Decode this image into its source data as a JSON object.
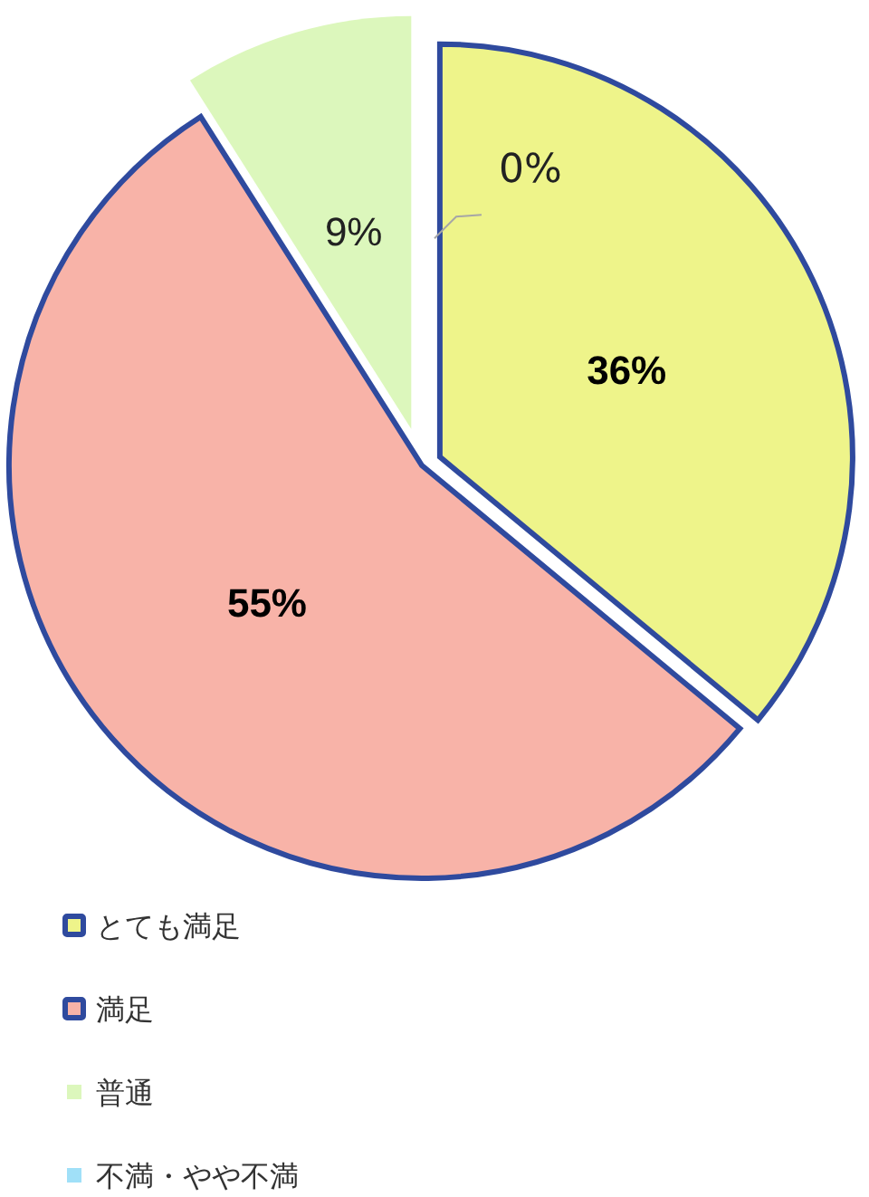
{
  "chart_data": {
    "type": "pie",
    "categories": [
      "とても満足",
      "満足",
      "普通",
      "不満・やや不満"
    ],
    "values": [
      36,
      55,
      9,
      0
    ],
    "value_labels": [
      "36%",
      "55%",
      "9%",
      "0%"
    ],
    "colors": [
      "#eef48a",
      "#f8b3a8",
      "#dcf7bc",
      "#a0e0f8"
    ],
    "legend": "bottom"
  }
}
